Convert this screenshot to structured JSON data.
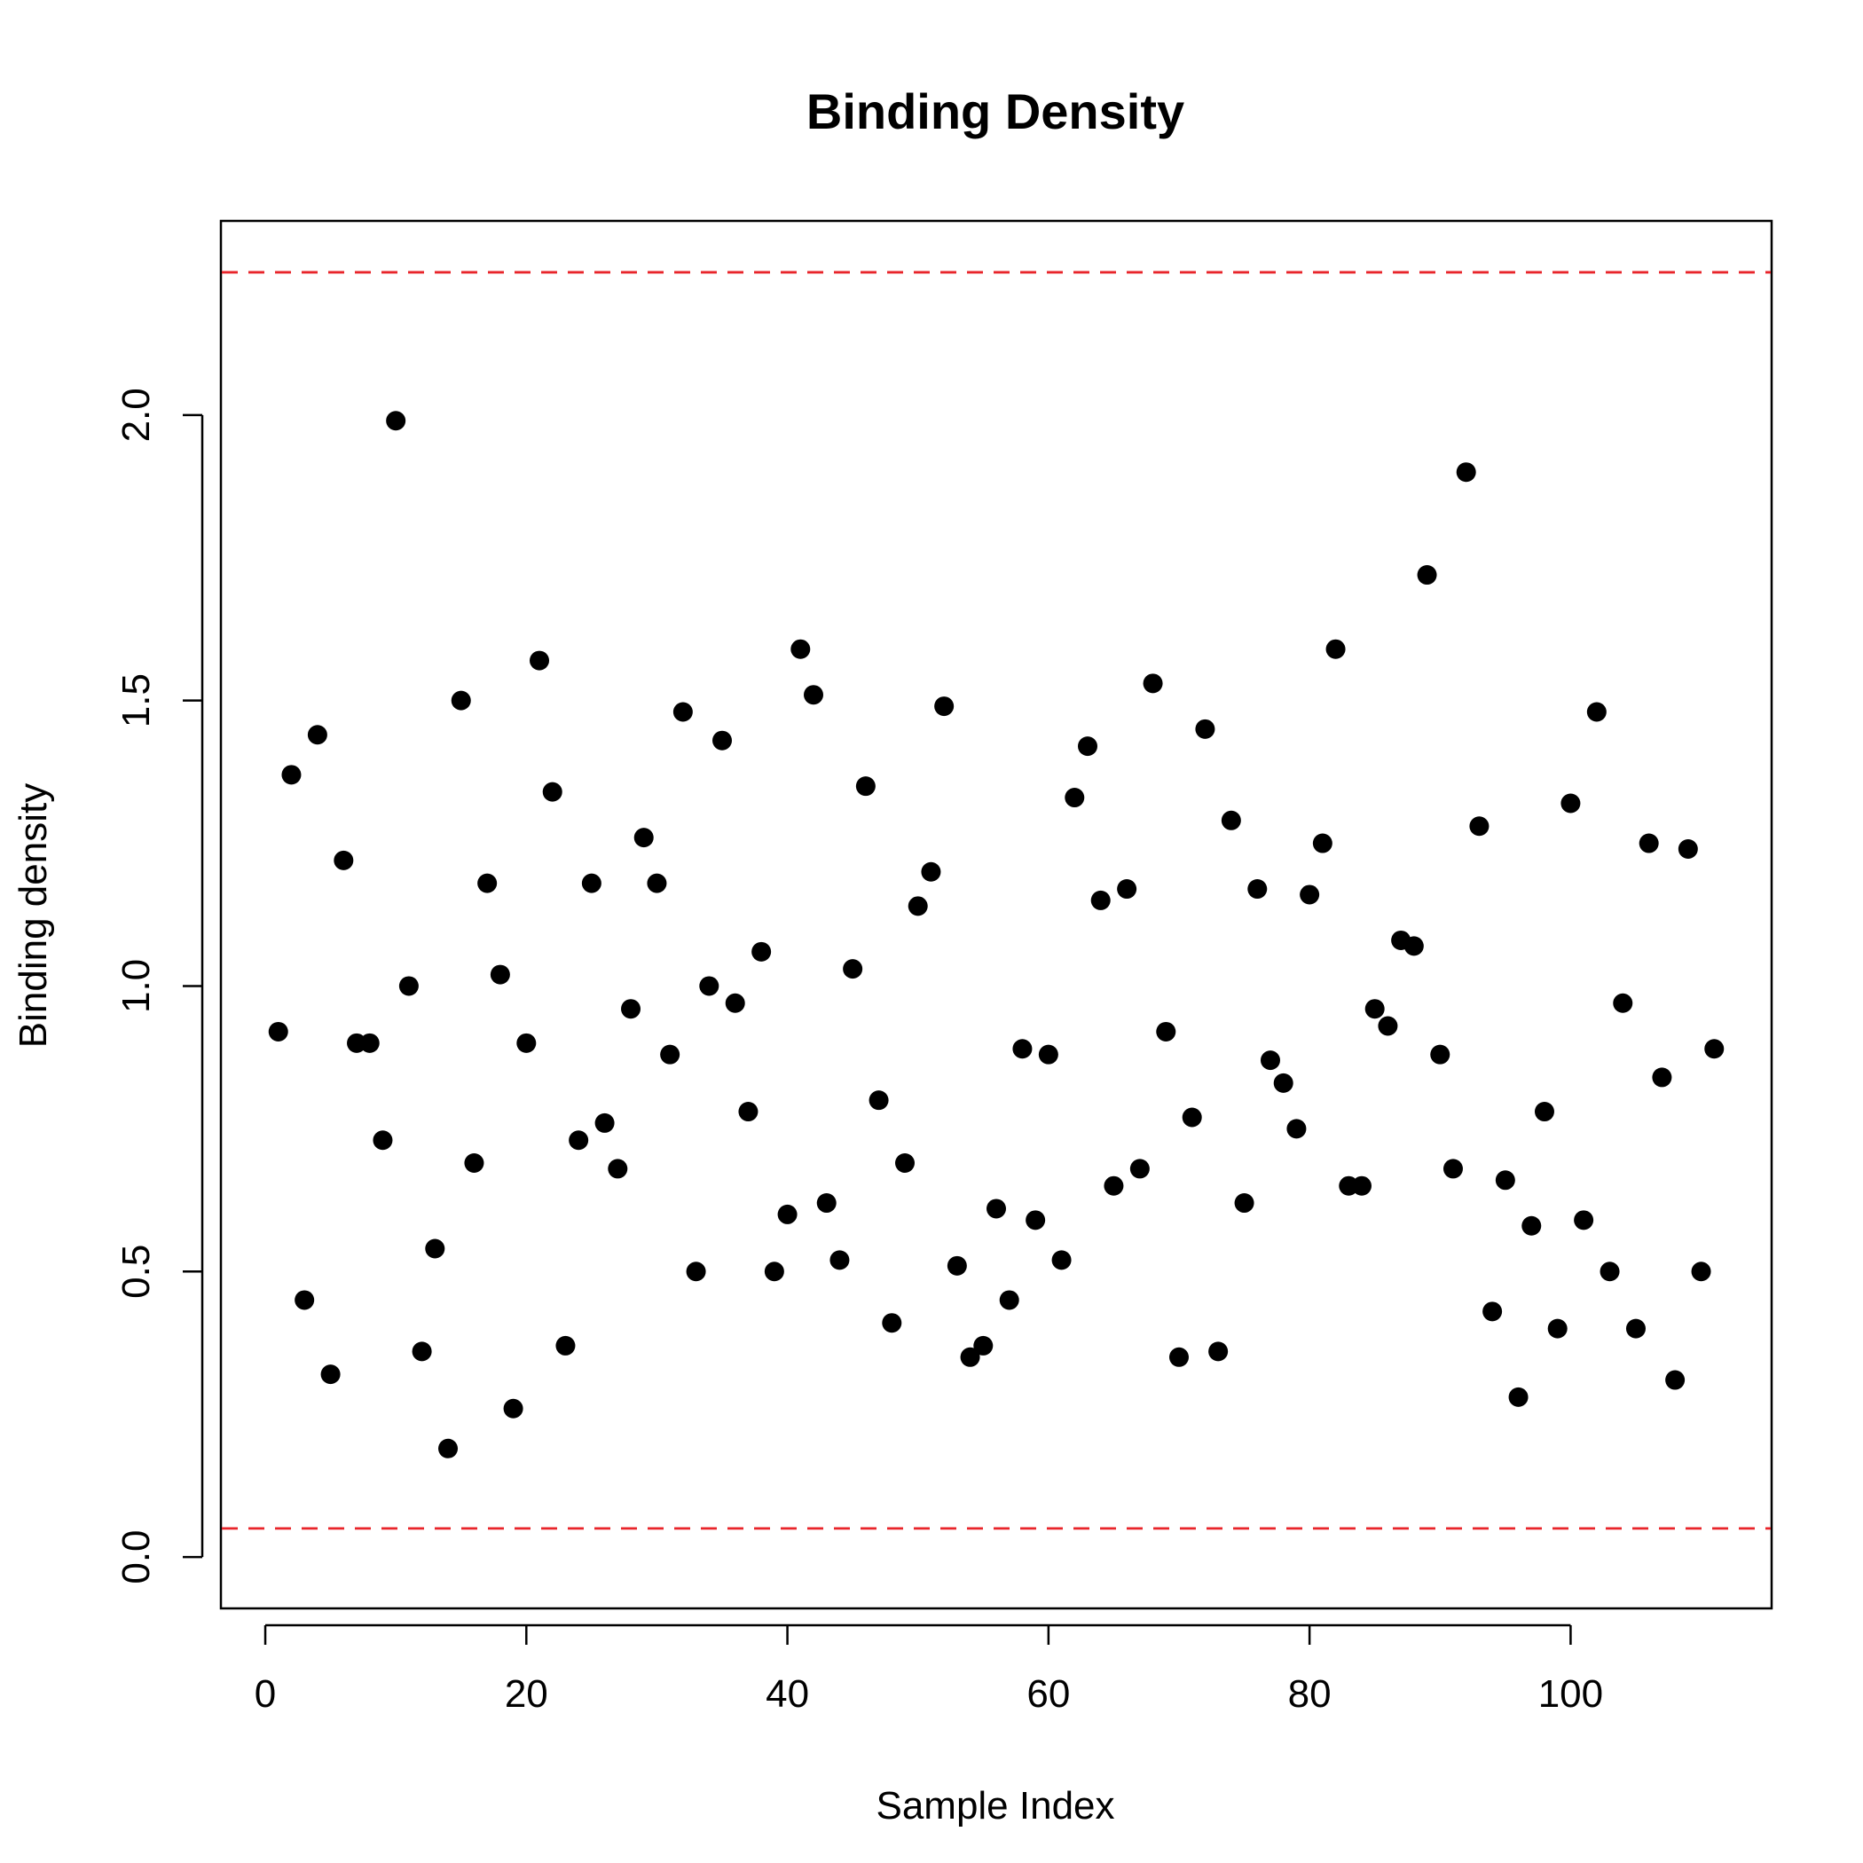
{
  "chart_data": {
    "type": "scatter",
    "title": "Binding Density",
    "xlabel": "Sample Index",
    "ylabel": "Binding density",
    "xlim": [
      -3.4,
      115.4
    ],
    "ylim": [
      -0.09,
      2.34
    ],
    "xticks": [
      0,
      20,
      40,
      60,
      80,
      100
    ],
    "xtick_labels": [
      "0",
      "20",
      "40",
      "60",
      "80",
      "100"
    ],
    "yticks": [
      0.0,
      0.5,
      1.0,
      1.5,
      2.0
    ],
    "ytick_labels": [
      "0.0",
      "0.5",
      "1.0",
      "1.5",
      "2.0"
    ],
    "grid": false,
    "point_color": "#000000",
    "reference_lines": [
      {
        "y": 2.25,
        "color": "#e8242a",
        "style": "dashed"
      },
      {
        "y": 0.05,
        "color": "#e8242a",
        "style": "dashed"
      }
    ],
    "series": [
      {
        "x": [
          1,
          2,
          3,
          4,
          5,
          6,
          7,
          8,
          9,
          10,
          11,
          12,
          13,
          14,
          15,
          16,
          17,
          18,
          19,
          20,
          21,
          22,
          23,
          24,
          25,
          26,
          27,
          28,
          29,
          30,
          31,
          32,
          33,
          34,
          35,
          36,
          37,
          38,
          39,
          40,
          41,
          42,
          43,
          44,
          45,
          46,
          47,
          48,
          49,
          50,
          51,
          52,
          53,
          54,
          55,
          56,
          57,
          58,
          59,
          60,
          61,
          62,
          63,
          64,
          65,
          66,
          67,
          68,
          69,
          70,
          71,
          72,
          73,
          74,
          75,
          76,
          77,
          78,
          79,
          80,
          81,
          82,
          83,
          84,
          85,
          86,
          87,
          88,
          89,
          90,
          91,
          92,
          93,
          94,
          95,
          96,
          97,
          98,
          99,
          100,
          101,
          102,
          103,
          104,
          105,
          106,
          107,
          108,
          109,
          110,
          111
        ],
        "y": [
          0.92,
          1.37,
          0.45,
          1.44,
          0.32,
          1.22,
          0.9,
          0.9,
          0.73,
          1.99,
          1.0,
          0.36,
          0.54,
          0.19,
          1.5,
          0.69,
          1.18,
          1.02,
          0.26,
          0.9,
          1.57,
          1.34,
          0.37,
          0.73,
          1.18,
          0.76,
          0.68,
          0.96,
          1.26,
          1.18,
          0.88,
          1.48,
          0.5,
          1.0,
          1.43,
          0.97,
          0.78,
          1.06,
          0.5,
          0.6,
          1.59,
          1.51,
          0.62,
          0.52,
          1.03,
          1.35,
          0.8,
          0.41,
          0.69,
          1.14,
          1.2,
          1.49,
          0.51,
          0.35,
          0.37,
          0.61,
          0.45,
          0.89,
          0.59,
          0.88,
          0.52,
          1.33,
          1.42,
          1.15,
          0.65,
          1.17,
          0.68,
          1.53,
          0.92,
          0.35,
          0.77,
          1.45,
          0.36,
          1.29,
          0.62,
          1.17,
          0.87,
          0.83,
          0.75,
          1.16,
          1.25,
          1.59,
          0.65,
          0.65,
          0.96,
          0.93,
          1.08,
          1.07,
          1.72,
          0.88,
          0.68,
          1.9,
          1.28,
          0.43,
          0.66,
          0.28,
          0.58,
          0.78,
          0.4,
          1.32,
          0.59,
          1.48,
          0.5,
          0.97,
          0.4,
          1.25,
          0.84,
          0.31,
          1.24,
          0.5,
          0.89
        ]
      }
    ]
  }
}
